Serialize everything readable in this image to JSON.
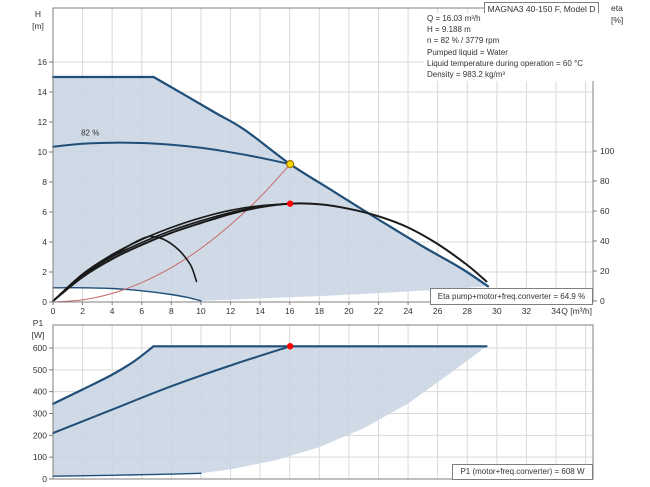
{
  "title_box": "MAGNA3 40-150 F, Model D",
  "info_lines": [
    "Q = 16.03 m³/h",
    "H = 9.188 m",
    "n = 82 % / 3779 rpm",
    "Pumped liquid = Water",
    "Liquid temperature during operation = 60 °C",
    "Density = 983.2 kg/m³"
  ],
  "result_boxes": {
    "eta_label": "Eta pump+motor+freq.converter = 64.9 %",
    "p1_label": "P1 (motor+freq.converter) = 608 W"
  },
  "colors": {
    "curve_blue": "#1f4e79",
    "fill_blue": "#c7d4e2",
    "curve_red": "#c96a6a",
    "curve_black": "#1a1a1a",
    "grid": "#d9d9d9",
    "border": "#7f7f7f",
    "text": "#333333",
    "duty_yellow": "#ffd700",
    "duty_yellow_border": "#a07800",
    "marker_red": "#ff0000"
  },
  "chart_data": [
    {
      "type": "line",
      "name": "head-capacity-chart",
      "x_axis": {
        "label": "Q [m³/h]",
        "ticks": [
          0,
          2,
          4,
          6,
          8,
          10,
          12,
          14,
          16,
          18,
          20,
          22,
          24,
          26,
          28,
          30,
          32,
          34
        ],
        "grid_extra": [
          36
        ],
        "range": [
          0,
          36.5
        ]
      },
      "y_left": {
        "label": [
          "H",
          "[m]"
        ],
        "ticks": [
          0,
          2,
          4,
          6,
          8,
          10,
          12,
          14,
          16
        ],
        "range": [
          0,
          19.6
        ]
      },
      "y_right": {
        "label": [
          "eta",
          "[%]"
        ],
        "ticks": [
          0,
          20,
          40,
          60,
          80,
          100
        ],
        "range": [
          0,
          130
        ]
      },
      "series": [
        {
          "name": "envelope-flat-top",
          "axis": "H",
          "color": "curve_blue",
          "width": 2.2,
          "smooth": false,
          "points": [
            [
              0,
              15
            ],
            [
              6.8,
              15
            ]
          ]
        },
        {
          "name": "max-speed-curve",
          "axis": "H",
          "color": "curve_blue",
          "width": 2.2,
          "smooth": true,
          "points": [
            [
              6.8,
              15
            ],
            [
              9,
              13.75
            ],
            [
              11,
              12.6
            ],
            [
              13,
              11.45
            ],
            [
              16.03,
              9.19
            ],
            [
              19,
              7.35
            ],
            [
              22,
              5.5
            ],
            [
              25,
              3.7
            ],
            [
              27.5,
              2.3
            ],
            [
              29.4,
              1.05
            ]
          ]
        },
        {
          "name": "min-speed-curve",
          "axis": "H",
          "color": "curve_blue",
          "width": 1.4,
          "smooth": true,
          "points": [
            [
              0,
              0.95
            ],
            [
              2,
              0.95
            ],
            [
              4,
              0.9
            ],
            [
              6,
              0.75
            ],
            [
              8,
              0.5
            ],
            [
              9.2,
              0.28
            ],
            [
              10,
              0.08
            ]
          ]
        },
        {
          "name": "speed-82pct-curve",
          "axis": "H",
          "color": "curve_blue",
          "width": 2,
          "smooth": true,
          "points": [
            [
              0,
              10.35
            ],
            [
              2,
              10.55
            ],
            [
              4,
              10.62
            ],
            [
              6,
              10.6
            ],
            [
              8,
              10.48
            ],
            [
              10,
              10.28
            ],
            [
              12,
              9.98
            ],
            [
              14,
              9.62
            ],
            [
              16.03,
              9.19
            ]
          ]
        },
        {
          "name": "system-curve",
          "axis": "H",
          "color": "curve_red",
          "width": 1,
          "smooth": true,
          "points": [
            [
              0,
              0
            ],
            [
              2,
              0.14
            ],
            [
              4,
              0.57
            ],
            [
              6,
              1.29
            ],
            [
              8,
              2.29
            ],
            [
              10,
              3.57
            ],
            [
              12,
              5.15
            ],
            [
              14,
              7.0
            ],
            [
              16.03,
              9.19
            ]
          ]
        },
        {
          "name": "eta-curve-main",
          "axis": "eta",
          "color": "curve_black",
          "width": 2,
          "smooth": true,
          "points": [
            [
              0,
              0
            ],
            [
              2,
              16
            ],
            [
              4,
              28
            ],
            [
              6,
              37.5
            ],
            [
              8,
              45.5
            ],
            [
              10,
              52
            ],
            [
              12,
              58
            ],
            [
              14,
              62.5
            ],
            [
              16.03,
              64.9
            ],
            [
              18,
              64.5
            ],
            [
              20,
              61.5
            ],
            [
              22,
              56.5
            ],
            [
              24,
              49
            ],
            [
              26,
              38
            ],
            [
              28,
              24
            ],
            [
              29.3,
              13
            ]
          ]
        },
        {
          "name": "eta-curve-b",
          "axis": "eta",
          "color": "curve_black",
          "width": 1.6,
          "smooth": true,
          "points": [
            [
              0,
              0
            ],
            [
              2,
              18
            ],
            [
              4,
              31
            ],
            [
              6,
              41
            ],
            [
              8,
              49
            ],
            [
              10,
              55.5
            ],
            [
              12,
              60.5
            ],
            [
              14,
              63.5
            ],
            [
              16.03,
              64.9
            ]
          ]
        },
        {
          "name": "eta-curve-c",
          "axis": "eta",
          "color": "curve_black",
          "width": 1.6,
          "smooth": true,
          "points": [
            [
              0,
              0
            ],
            [
              2,
              17
            ],
            [
              4,
              29.5
            ],
            [
              6,
              39
            ],
            [
              8,
              47
            ],
            [
              10,
              53.5
            ],
            [
              12,
              59
            ],
            [
              14,
              63
            ],
            [
              16.03,
              64.9
            ]
          ]
        },
        {
          "name": "eta-curve-min-speed",
          "axis": "eta",
          "color": "curve_black",
          "width": 1.6,
          "smooth": true,
          "points": [
            [
              0,
              0
            ],
            [
              1.5,
              13
            ],
            [
              3,
              24
            ],
            [
              4.5,
              33
            ],
            [
              5.5,
              39
            ],
            [
              6.5,
              43
            ],
            [
              7.5,
              41
            ],
            [
              8.5,
              34
            ],
            [
              9.3,
              24
            ],
            [
              9.7,
              13
            ]
          ]
        }
      ],
      "fill_region": [
        [
          0,
          15
        ],
        [
          6.8,
          15
        ],
        [
          9,
          13.75
        ],
        [
          11,
          12.6
        ],
        [
          13,
          11.45
        ],
        [
          16.03,
          9.19
        ],
        [
          19,
          7.35
        ],
        [
          22,
          5.5
        ],
        [
          25,
          3.7
        ],
        [
          27.5,
          2.3
        ],
        [
          29.4,
          1.05
        ],
        [
          26,
          0.82
        ],
        [
          22,
          0.59
        ],
        [
          18,
          0.39
        ],
        [
          14,
          0.24
        ],
        [
          10,
          0.07
        ],
        [
          9.2,
          0.28
        ],
        [
          8,
          0.5
        ],
        [
          6,
          0.75
        ],
        [
          4,
          0.9
        ],
        [
          2,
          0.95
        ],
        [
          0,
          0.95
        ]
      ],
      "markers": [
        {
          "name": "duty-point",
          "q": 16.03,
          "value": 9.19,
          "axis": "H",
          "style": "yellow"
        },
        {
          "name": "eta-point",
          "q": 16.03,
          "value": 64.9,
          "axis": "eta",
          "style": "red"
        }
      ],
      "annotations": [
        {
          "name": "speed-curve-label",
          "text": "82 %",
          "q": 1.9,
          "value": 11.1,
          "axis": "H"
        }
      ]
    },
    {
      "type": "line",
      "name": "power-chart",
      "x_axis": {
        "label": "",
        "ticks": [],
        "grid_extra": [
          2,
          4,
          6,
          8,
          10,
          12,
          14,
          16,
          18,
          20,
          22,
          24,
          26,
          28,
          30,
          32,
          34,
          36
        ],
        "range": [
          0,
          36.5
        ]
      },
      "y_left": {
        "label": [
          "P1",
          "[W]"
        ],
        "ticks": [
          0,
          100,
          200,
          300,
          400,
          500,
          600
        ],
        "range": [
          0,
          705
        ]
      },
      "series": [
        {
          "name": "max-power-rise",
          "axis": "P",
          "color": "curve_blue",
          "width": 2.2,
          "smooth": true,
          "points": [
            [
              0,
              344
            ],
            [
              2,
              410
            ],
            [
              4,
              478
            ],
            [
              5.5,
              540
            ],
            [
              6.8,
              608
            ]
          ]
        },
        {
          "name": "max-power-flat",
          "axis": "P",
          "color": "curve_blue",
          "width": 2.2,
          "smooth": false,
          "points": [
            [
              6.8,
              608
            ],
            [
              29.3,
              608
            ]
          ]
        },
        {
          "name": "power-82pct-curve",
          "axis": "P",
          "color": "curve_blue",
          "width": 2,
          "smooth": true,
          "points": [
            [
              0,
              210
            ],
            [
              4,
              318
            ],
            [
              8,
              425
            ],
            [
              12,
              520
            ],
            [
              16.03,
              608
            ]
          ]
        },
        {
          "name": "min-power-curve",
          "axis": "P",
          "color": "curve_blue",
          "width": 1.4,
          "smooth": true,
          "points": [
            [
              0,
              13
            ],
            [
              4,
              17
            ],
            [
              7,
              21
            ],
            [
              10,
              26
            ]
          ]
        }
      ],
      "fill_region": [
        [
          0,
          344
        ],
        [
          2,
          410
        ],
        [
          4,
          478
        ],
        [
          5.5,
          540
        ],
        [
          6.8,
          608
        ],
        [
          29.3,
          608
        ],
        [
          27,
          492
        ],
        [
          24,
          346
        ],
        [
          21,
          232
        ],
        [
          18,
          146
        ],
        [
          15,
          85
        ],
        [
          12,
          44
        ],
        [
          10,
          26
        ],
        [
          7,
          21
        ],
        [
          4,
          17
        ],
        [
          0,
          13
        ]
      ],
      "markers": [
        {
          "name": "power-point",
          "q": 16.03,
          "value": 608,
          "axis": "P",
          "style": "red"
        }
      ],
      "annotations": []
    }
  ]
}
